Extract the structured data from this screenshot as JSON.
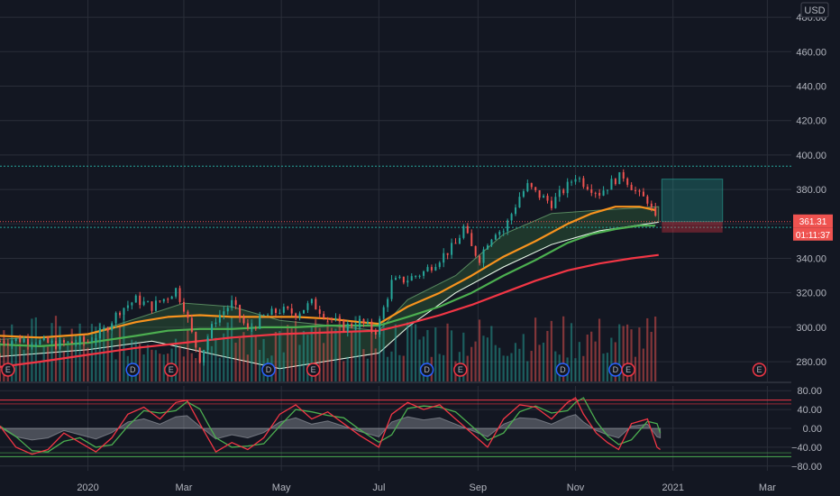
{
  "chart_data": {
    "type": "candlestick",
    "currency": "USD",
    "price_axis": {
      "min": 268,
      "max": 490,
      "ticks": [
        "480.00",
        "460.00",
        "440.00",
        "420.00",
        "400.00",
        "380.00",
        "360.00",
        "340.00",
        "320.00",
        "300.00",
        "280.00"
      ],
      "tick_values": [
        480,
        460,
        440,
        420,
        400,
        380,
        360,
        340,
        320,
        300,
        280
      ]
    },
    "osc_axis": {
      "min": -90,
      "max": 90,
      "ticks": [
        "80.00",
        "40.00",
        "0.00",
        "−40.00",
        "−80.00"
      ],
      "tick_values": [
        80,
        40,
        0,
        -40,
        -80
      ]
    },
    "time_axis": {
      "labels": [
        "2020",
        "Mar",
        "May",
        "Jul",
        "Sep",
        "Nov",
        "2021",
        "Mar"
      ],
      "label_days": [
        0,
        60,
        121,
        182,
        244,
        305,
        366,
        425
      ],
      "first_day": -55,
      "last_day": 440
    },
    "last_price": {
      "value": 361.31,
      "label": "361.31",
      "timer": "01:11:37"
    },
    "resistance_line": 393.5,
    "support_line": 358,
    "position_box": {
      "start_day": 359,
      "end_day": 397,
      "entry": 361.3,
      "target": 386,
      "stop": 355
    },
    "moving_averages": [
      {
        "color": "#f7931e",
        "points": [
          [
            -55,
            295
          ],
          [
            -30,
            294
          ],
          [
            0,
            296
          ],
          [
            30,
            303
          ],
          [
            50,
            306
          ],
          [
            70,
            307
          ],
          [
            90,
            306
          ],
          [
            110,
            306
          ],
          [
            130,
            306
          ],
          [
            150,
            305
          ],
          [
            170,
            303
          ],
          [
            182,
            302
          ],
          [
            200,
            312
          ],
          [
            220,
            320
          ],
          [
            240,
            330
          ],
          [
            260,
            341
          ],
          [
            280,
            350
          ],
          [
            300,
            360
          ],
          [
            315,
            366
          ],
          [
            330,
            370
          ],
          [
            345,
            370
          ],
          [
            355,
            368
          ]
        ]
      },
      {
        "color": "#4caf50",
        "points": [
          [
            -55,
            290
          ],
          [
            -30,
            289
          ],
          [
            0,
            291
          ],
          [
            30,
            295
          ],
          [
            50,
            298
          ],
          [
            70,
            299
          ],
          [
            90,
            299
          ],
          [
            110,
            300
          ],
          [
            130,
            300
          ],
          [
            150,
            301
          ],
          [
            170,
            301
          ],
          [
            182,
            301
          ],
          [
            200,
            306
          ],
          [
            220,
            312
          ],
          [
            240,
            320
          ],
          [
            260,
            330
          ],
          [
            280,
            339
          ],
          [
            300,
            349
          ],
          [
            315,
            354
          ],
          [
            330,
            357
          ],
          [
            345,
            359
          ],
          [
            355,
            359
          ]
        ]
      },
      {
        "color": "#f23645",
        "points": [
          [
            -55,
            277
          ],
          [
            -30,
            280
          ],
          [
            0,
            284
          ],
          [
            30,
            288
          ],
          [
            60,
            291
          ],
          [
            90,
            294
          ],
          [
            120,
            296
          ],
          [
            150,
            297
          ],
          [
            182,
            298
          ],
          [
            200,
            302
          ],
          [
            220,
            307
          ],
          [
            240,
            313
          ],
          [
            260,
            320
          ],
          [
            280,
            327
          ],
          [
            300,
            333
          ],
          [
            320,
            337
          ],
          [
            340,
            340
          ],
          [
            357,
            342
          ]
        ]
      }
    ],
    "ribbon": {
      "upper": [
        [
          -55,
          293
        ],
        [
          0,
          296
        ],
        [
          40,
          308
        ],
        [
          60,
          314
        ],
        [
          90,
          312
        ],
        [
          120,
          304
        ],
        [
          182,
          298
        ],
        [
          200,
          316
        ],
        [
          230,
          330
        ],
        [
          260,
          354
        ],
        [
          290,
          366
        ],
        [
          320,
          368
        ],
        [
          357,
          370
        ]
      ],
      "lower": [
        [
          -55,
          283
        ],
        [
          0,
          287
        ],
        [
          40,
          292
        ],
        [
          60,
          288
        ],
        [
          90,
          282
        ],
        [
          120,
          276
        ],
        [
          182,
          285
        ],
        [
          200,
          300
        ],
        [
          230,
          320
        ],
        [
          260,
          335
        ],
        [
          290,
          348
        ],
        [
          320,
          356
        ],
        [
          357,
          361
        ]
      ]
    },
    "candles": {
      "start_day": -55,
      "end_day": 357,
      "step": 2.5,
      "path": [
        [
          -55,
          292
        ],
        [
          -40,
          293
        ],
        [
          -20,
          290
        ],
        [
          0,
          292
        ],
        [
          10,
          298
        ],
        [
          20,
          310
        ],
        [
          30,
          316
        ],
        [
          40,
          312
        ],
        [
          50,
          318
        ],
        [
          55,
          322
        ],
        [
          60,
          312
        ],
        [
          65,
          296
        ],
        [
          70,
          282
        ],
        [
          75,
          294
        ],
        [
          80,
          305
        ],
        [
          90,
          314
        ],
        [
          100,
          298
        ],
        [
          110,
          306
        ],
        [
          120,
          310
        ],
        [
          130,
          308
        ],
        [
          140,
          314
        ],
        [
          150,
          306
        ],
        [
          160,
          300
        ],
        [
          170,
          303
        ],
        [
          180,
          298
        ],
        [
          182,
          302
        ],
        [
          190,
          326
        ],
        [
          200,
          328
        ],
        [
          210,
          332
        ],
        [
          220,
          340
        ],
        [
          230,
          348
        ],
        [
          235,
          358
        ],
        [
          240,
          346
        ],
        [
          245,
          340
        ],
        [
          250,
          350
        ],
        [
          255,
          356
        ],
        [
          260,
          356
        ],
        [
          265,
          366
        ],
        [
          270,
          376
        ],
        [
          275,
          382
        ],
        [
          280,
          378
        ],
        [
          290,
          372
        ],
        [
          300,
          382
        ],
        [
          305,
          388
        ],
        [
          310,
          384
        ],
        [
          320,
          378
        ],
        [
          330,
          386
        ],
        [
          335,
          388
        ],
        [
          340,
          382
        ],
        [
          345,
          376
        ],
        [
          350,
          374
        ],
        [
          355,
          362
        ],
        [
          357,
          361
        ]
      ]
    },
    "oscillator": {
      "k_points": [
        [
          -55,
          5
        ],
        [
          -45,
          -40
        ],
        [
          -35,
          -55
        ],
        [
          -25,
          -45
        ],
        [
          -15,
          -10
        ],
        [
          -5,
          -30
        ],
        [
          5,
          -50
        ],
        [
          15,
          -20
        ],
        [
          25,
          30
        ],
        [
          35,
          45
        ],
        [
          45,
          20
        ],
        [
          55,
          55
        ],
        [
          62,
          60
        ],
        [
          70,
          10
        ],
        [
          75,
          -20
        ],
        [
          80,
          -50
        ],
        [
          90,
          -30
        ],
        [
          100,
          -45
        ],
        [
          110,
          -20
        ],
        [
          120,
          30
        ],
        [
          130,
          50
        ],
        [
          140,
          20
        ],
        [
          150,
          35
        ],
        [
          160,
          10
        ],
        [
          170,
          -15
        ],
        [
          182,
          -40
        ],
        [
          190,
          30
        ],
        [
          200,
          55
        ],
        [
          210,
          40
        ],
        [
          220,
          50
        ],
        [
          230,
          20
        ],
        [
          240,
          -10
        ],
        [
          250,
          -40
        ],
        [
          260,
          20
        ],
        [
          270,
          50
        ],
        [
          280,
          45
        ],
        [
          290,
          20
        ],
        [
          300,
          55
        ],
        [
          305,
          65
        ],
        [
          310,
          30
        ],
        [
          318,
          -10
        ],
        [
          325,
          -30
        ],
        [
          332,
          -45
        ],
        [
          340,
          10
        ],
        [
          350,
          20
        ],
        [
          356,
          -40
        ],
        [
          358,
          -45
        ]
      ],
      "hist_scale": 0.45,
      "overbought": 60,
      "oversold": -60
    },
    "volume": {
      "max_height_ratio": 0.22
    },
    "events": [
      {
        "day": -50,
        "label": "E",
        "color": "#f23645"
      },
      {
        "day": 28,
        "label": "D",
        "color": "#2962ff"
      },
      {
        "day": 52,
        "label": "E",
        "color": "#f23645"
      },
      {
        "day": 113,
        "label": "D",
        "color": "#2962ff"
      },
      {
        "day": 141,
        "label": "E",
        "color": "#f23645"
      },
      {
        "day": 212,
        "label": "D",
        "color": "#2962ff"
      },
      {
        "day": 233,
        "label": "E",
        "color": "#f23645"
      },
      {
        "day": 297,
        "label": "D",
        "color": "#2962ff"
      },
      {
        "day": 330,
        "label": "D",
        "color": "#2962ff"
      },
      {
        "day": 338,
        "label": "E",
        "color": "#f23645"
      },
      {
        "day": 420,
        "label": "E",
        "color": "#f23645"
      }
    ],
    "grid": true,
    "colors": {
      "up": "#26a69a",
      "down": "#ef5350",
      "background": "#131722",
      "k_line": "#f23645",
      "d_line": "#4caf50"
    }
  }
}
